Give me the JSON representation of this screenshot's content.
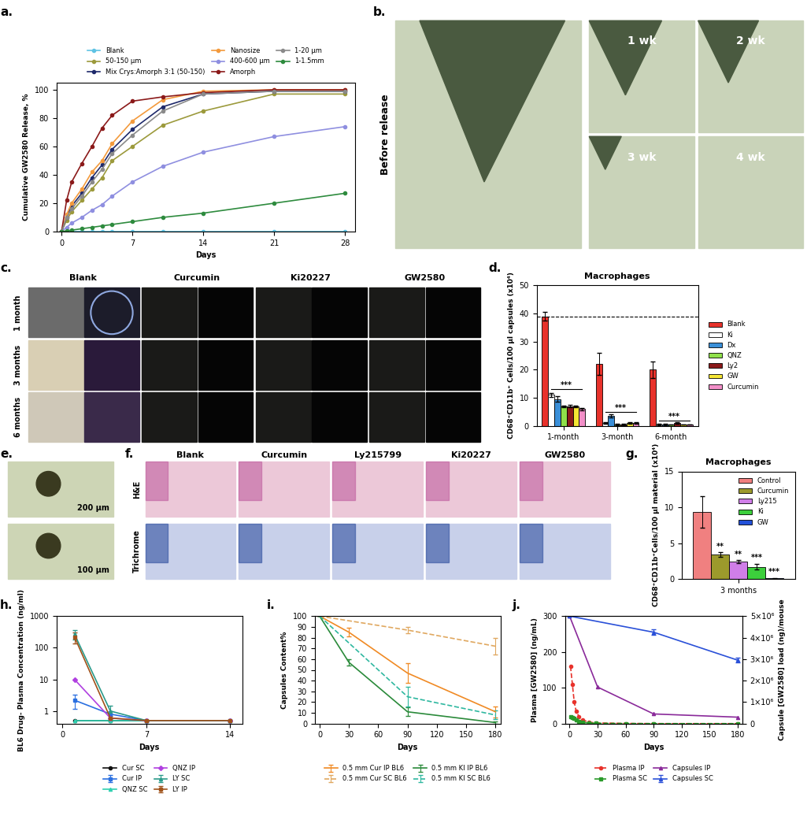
{
  "chart_data": [
    {
      "type": "line",
      "panel_label": "a.",
      "x_label": "Days",
      "y_label": "Cumulative GW2580 Release, %",
      "x": [
        0,
        0.5,
        1,
        2,
        3,
        4,
        5,
        7,
        10,
        14,
        21,
        28
      ],
      "xlim": [
        -0.5,
        29
      ],
      "xticks": [
        0,
        7,
        14,
        21,
        28
      ],
      "ylim": [
        0,
        105
      ],
      "yticks": [
        0,
        20,
        40,
        60,
        80,
        100
      ],
      "marker": "circle",
      "legend": "lower center",
      "series": [
        {
          "name": "Blank",
          "color": "#5fc3e4",
          "values": [
            0,
            0,
            0,
            0,
            0,
            0,
            0,
            0,
            0,
            0,
            0,
            0
          ]
        },
        {
          "name": "50-150 µm",
          "color": "#9c9a3c",
          "values": [
            0,
            8,
            14,
            22,
            30,
            38,
            50,
            60,
            75,
            85,
            97,
            97
          ]
        },
        {
          "name": "Mix Crys:Amorph 3:1 (50-150)",
          "color": "#1f2a6b",
          "values": [
            0,
            10,
            18,
            27,
            38,
            47,
            58,
            72,
            88,
            97,
            99,
            99
          ]
        },
        {
          "name": "Nanosize",
          "color": "#f39a3c",
          "values": [
            0,
            12,
            20,
            30,
            42,
            50,
            62,
            78,
            93,
            99,
            100,
            100
          ]
        },
        {
          "name": "400-600 µm",
          "color": "#8f8fe0",
          "values": [
            0,
            3,
            6,
            10,
            15,
            19,
            25,
            35,
            46,
            56,
            67,
            74
          ]
        },
        {
          "name": "Amorph",
          "color": "#8b1a1a",
          "values": [
            0,
            22,
            35,
            48,
            60,
            73,
            82,
            92,
            95,
            98,
            100,
            100
          ]
        },
        {
          "name": "1-20 µm",
          "color": "#8a8a8a",
          "values": [
            0,
            10,
            16,
            25,
            35,
            44,
            55,
            68,
            85,
            97,
            99,
            99
          ]
        },
        {
          "name": "1-1.5mm",
          "color": "#2e8b3e",
          "values": [
            0,
            0.5,
            1,
            2,
            3,
            4,
            5,
            7,
            10,
            13,
            20,
            27
          ]
        }
      ]
    },
    {
      "type": "bar",
      "panel_label": "d.",
      "title": "Macrophages",
      "y_label": "CD68⁺CD11b⁺ Cells/100 µl capsules (x10⁴)",
      "categories": [
        "1-month",
        "3-month",
        "6-month"
      ],
      "ylim": [
        0,
        50
      ],
      "yticks": [
        0,
        10,
        20,
        30,
        40,
        50
      ],
      "hline": 39,
      "legend": "center left",
      "annotations": [
        {
          "text": "***",
          "category": "1-month",
          "y": 13
        },
        {
          "text": "***",
          "category": "3-month",
          "y": 5
        },
        {
          "text": "***",
          "category": "6-month",
          "y": 2
        }
      ],
      "series": [
        {
          "name": "Blank",
          "color": "#e8322b",
          "values": [
            39,
            22,
            20
          ],
          "errors": [
            1.5,
            4,
            3
          ]
        },
        {
          "name": "Ki",
          "color": "#ffffff",
          "values": [
            11,
            1,
            0.5
          ],
          "errors": [
            0.8,
            0.3,
            0.2
          ]
        },
        {
          "name": "Dx",
          "color": "#3a8fd8",
          "values": [
            9.5,
            3.5,
            0.5
          ],
          "errors": [
            1,
            0.5,
            0.2
          ]
        },
        {
          "name": "QNZ",
          "color": "#8fe04a",
          "values": [
            7,
            0.5,
            0.5
          ],
          "errors": [
            0.3,
            0.2,
            0.1
          ]
        },
        {
          "name": "Ly2",
          "color": "#8b1a1a",
          "values": [
            7,
            0.5,
            1
          ],
          "errors": [
            0.4,
            0.2,
            0.3
          ]
        },
        {
          "name": "GW",
          "color": "#f5e634",
          "values": [
            7,
            1,
            0.5
          ],
          "errors": [
            0.3,
            0.3,
            0.1
          ]
        },
        {
          "name": "Curcumin",
          "color": "#f28fc8",
          "values": [
            6,
            1,
            0.5
          ],
          "errors": [
            0.4,
            0.3,
            0.1
          ]
        }
      ]
    },
    {
      "type": "bar",
      "panel_label": "g.",
      "title": "Macrophages",
      "y_label": "CD68⁺CD11b⁺Cells/100 µl material (x10⁴)",
      "categories": [
        "3 months"
      ],
      "ylim": [
        0,
        15
      ],
      "yticks": [
        0,
        5,
        10,
        15
      ],
      "legend": "upper right",
      "annotations": [
        {
          "text": "**",
          "category": "3 months",
          "series": "Curcumin",
          "y": 4.0
        },
        {
          "text": "**",
          "category": "3 months",
          "series": "Ly215",
          "y": 2.9
        },
        {
          "text": "***",
          "category": "3 months",
          "series": "Ki",
          "y": 2.4
        },
        {
          "text": "***",
          "category": "3 months",
          "series": "GW",
          "y": 0.4
        }
      ],
      "series": [
        {
          "name": "Control",
          "color": "#f08080",
          "values": [
            9.3
          ],
          "errors": [
            2.2
          ]
        },
        {
          "name": "Curcumin",
          "color": "#9c9a2c",
          "values": [
            3.4
          ],
          "errors": [
            0.3
          ]
        },
        {
          "name": "Ly215",
          "color": "#d07ee8",
          "values": [
            2.4
          ],
          "errors": [
            0.2
          ]
        },
        {
          "name": "Ki",
          "color": "#3ccf3c",
          "values": [
            1.7
          ],
          "errors": [
            0.4
          ]
        },
        {
          "name": "GW",
          "color": "#2250d8",
          "values": [
            0.1
          ],
          "errors": [
            0.05
          ]
        }
      ]
    },
    {
      "type": "line",
      "panel_label": "h.",
      "x_label": "Days",
      "y_label": "BL6 Drug- Plasma Concentration (ng/ml)",
      "log": "y",
      "xlim": [
        -0.5,
        15
      ],
      "xticks": [
        0,
        7,
        14
      ],
      "ylim": [
        0.4,
        1000
      ],
      "yticks": [
        1,
        10,
        100,
        1000
      ],
      "legend": "upper center",
      "series": [
        {
          "name": "Cur SC",
          "color": "#111111",
          "marker": "circle",
          "x": [
            1,
            4,
            7,
            14
          ],
          "values": [
            0.5,
            0.5,
            0.5,
            0.5
          ]
        },
        {
          "name": "Cur IP",
          "color": "#2a6fe0",
          "marker": "square",
          "x": [
            1,
            4,
            7,
            14
          ],
          "values": [
            2.2,
            0.8,
            0.5,
            0.5
          ],
          "errors": [
            1,
            0.2,
            0,
            0
          ]
        },
        {
          "name": "QNZ SC",
          "color": "#2fd0b0",
          "marker": "triangle",
          "x": [
            1,
            4,
            7,
            14
          ],
          "values": [
            0.5,
            0.5,
            0.5,
            0.5
          ]
        },
        {
          "name": "QNZ IP",
          "color": "#b040e0",
          "marker": "diamond",
          "x": [
            1,
            4,
            7,
            14
          ],
          "values": [
            10,
            0.6,
            0.5,
            0.5
          ]
        },
        {
          "name": "LY SC",
          "color": "#2a9a8a",
          "marker": "triangle",
          "x": [
            1,
            4,
            7,
            14
          ],
          "values": [
            270,
            1.0,
            0.5,
            0.5
          ],
          "errors": [
            90,
            0.5,
            0,
            0
          ]
        },
        {
          "name": "LY IP",
          "color": "#a0521a",
          "marker": "square",
          "x": [
            1,
            4,
            7,
            14
          ],
          "values": [
            220,
            0.6,
            0.5,
            0.5
          ],
          "errors": [
            80,
            0.1,
            0,
            0
          ]
        }
      ]
    },
    {
      "type": "line",
      "panel_label": "i.",
      "x_label": "Days",
      "y_label": "Capsules Content%",
      "xlim": [
        -5,
        185
      ],
      "xticks": [
        0,
        30,
        60,
        90,
        120,
        150,
        180
      ],
      "ylim": [
        0,
        100
      ],
      "yticks": [
        0,
        10,
        20,
        30,
        40,
        50,
        60,
        70,
        80,
        90,
        100
      ],
      "legend": "upper center",
      "series": [
        {
          "name": "0.5 mm Cur IP BL6",
          "color": "#f08a24",
          "line_style": "solid",
          "marker": "none",
          "x": [
            0,
            30,
            90,
            180
          ],
          "values": [
            100,
            85,
            47,
            11
          ],
          "errors": [
            0,
            4,
            9,
            5
          ]
        },
        {
          "name": "0.5 mm Cur SC BL6",
          "color": "#e0a860",
          "line_style": "dashed",
          "marker": "none",
          "x": [
            0,
            90,
            180
          ],
          "values": [
            100,
            87,
            72
          ],
          "errors": [
            0,
            3,
            8
          ]
        },
        {
          "name": "0.5 mm KI IP BL6",
          "color": "#2a8a3a",
          "line_style": "solid",
          "marker": "none",
          "x": [
            0,
            30,
            90,
            180
          ],
          "values": [
            100,
            57,
            11,
            1
          ],
          "errors": [
            0,
            3,
            4,
            1
          ]
        },
        {
          "name": "0.5 mm KI SC BL6",
          "color": "#2fb8a0",
          "line_style": "dashed",
          "marker": "none",
          "x": [
            0,
            90,
            180
          ],
          "values": [
            100,
            25,
            8
          ],
          "errors": [
            0,
            9,
            4
          ]
        }
      ]
    },
    {
      "type": "line",
      "panel_label": "j.",
      "x_label": "Days",
      "y_label": "Plasma [GW2580] (ng/mL)",
      "y2_label": "Capsule [GW2580] load (ng)/mouse",
      "xlim": [
        -5,
        185
      ],
      "xticks": [
        0,
        30,
        60,
        90,
        120,
        150,
        180
      ],
      "ylim": [
        0,
        300
      ],
      "yticks": [
        0,
        100,
        200,
        300
      ],
      "y2lim": [
        0,
        5000000
      ],
      "y2ticks": [
        0,
        {
          "value": 1000000,
          "label": "1×10⁶"
        },
        {
          "value": 2000000,
          "label": "2×10⁶"
        },
        {
          "value": 3000000,
          "label": "3×10⁶"
        },
        {
          "value": 4000000,
          "label": "4×10⁶"
        },
        {
          "value": 5000000,
          "label": "5×10⁶"
        }
      ],
      "legend": "upper center",
      "series": [
        {
          "name": "Plasma IP",
          "color": "#e8322b",
          "line_style": "dashed",
          "marker": "circle",
          "x": [
            1,
            3,
            5,
            7,
            10,
            14,
            21,
            28,
            60,
            90,
            180
          ],
          "values": [
            160,
            110,
            60,
            35,
            20,
            10,
            4,
            2,
            0.5,
            0,
            0
          ]
        },
        {
          "name": "Plasma SC",
          "color": "#2a9a2a",
          "line_style": "dashed",
          "marker": "square",
          "x": [
            1,
            3,
            5,
            7,
            10,
            14,
            21,
            28,
            60,
            90,
            180
          ],
          "values": [
            20,
            18,
            15,
            10,
            6,
            3,
            1.5,
            1,
            0.3,
            0,
            0
          ]
        },
        {
          "name": "Capsules IP",
          "color": "#8a2a9a",
          "line_style": "solid",
          "marker": "triangle",
          "axis": "y2",
          "x": [
            0,
            30,
            90,
            180
          ],
          "values": [
            5000000,
            1700000,
            450000,
            300000
          ]
        },
        {
          "name": "Capsules SC",
          "color": "#2a50d8",
          "line_style": "solid",
          "marker": "triangle",
          "axis": "y2",
          "x": [
            0,
            90,
            180
          ],
          "values": [
            5000000,
            4250000,
            2950000
          ],
          "errors": [
            0,
            120000,
            120000
          ]
        }
      ]
    }
  ],
  "images": {
    "b": {
      "panel_label": "b.",
      "before": "Before release",
      "frames": [
        "1 wk",
        "2 wk",
        "3 wk",
        "4 wk"
      ]
    },
    "c": {
      "panel_label": "c.",
      "columns": [
        "Blank",
        "Curcumin",
        "Ki20227",
        "GW2580"
      ],
      "rows": [
        "1 month",
        "3 months",
        "6 months"
      ]
    },
    "e": {
      "panel_label": "e.",
      "scale_labels": [
        "200 µm",
        "100 µm"
      ]
    },
    "f": {
      "panel_label": "f.",
      "columns": [
        "Blank",
        "Curcumin",
        "Ly215799",
        "Ki20227",
        "GW2580"
      ],
      "rows": [
        "H&E",
        "Trichrome"
      ]
    }
  }
}
